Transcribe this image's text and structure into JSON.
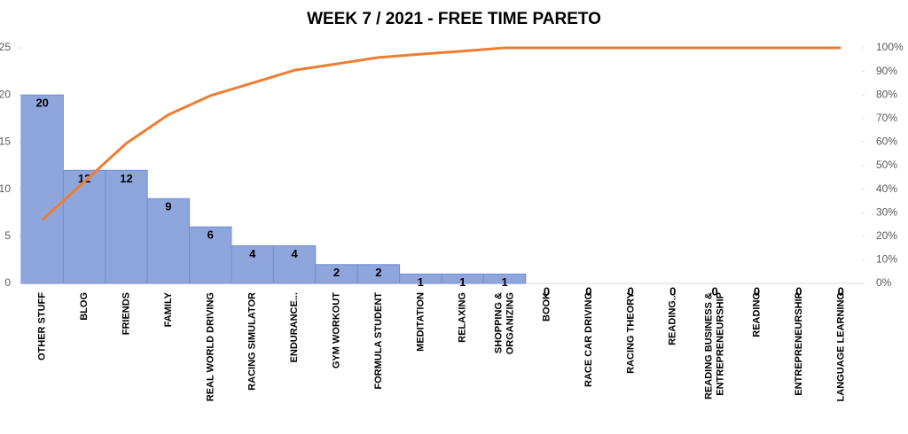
{
  "chart_data": {
    "type": "pareto",
    "title": "WEEK 7 / 2021 - FREE TIME PARETO",
    "categories": [
      "OTHER STUFF",
      "BLOG",
      "FRIENDS",
      "FAMILY",
      "REAL WORLD DRIVING",
      "RACING SIMULATOR",
      "ENDURANCE...",
      "GYM WORKOUT",
      "FORMULA STUDENT",
      "MEDITATION",
      "RELAXING",
      "SHOPPING & ORGANIZING",
      "BOOK",
      "RACE CAR DRIVING",
      "RACING THEORY",
      "READING...",
      "READING BUSINESS & ENTREPRENEURSHIP",
      "READING",
      "ENTREPRENEURSHIP",
      "LANGUAGE LEARNING"
    ],
    "series": [
      {
        "type": "bar",
        "color": "#8fa6dd",
        "values": [
          20,
          12,
          12,
          9,
          6,
          4,
          4,
          2,
          2,
          1,
          1,
          1,
          0,
          0,
          0,
          0,
          0,
          0,
          0,
          0
        ]
      },
      {
        "type": "line",
        "axis": "y2",
        "color": "#ed7d31",
        "values": [
          27.0,
          43.2,
          59.5,
          71.6,
          79.7,
          85.1,
          90.5,
          93.2,
          95.9,
          97.3,
          98.6,
          100,
          100,
          100,
          100,
          100,
          100,
          100,
          100,
          100
        ]
      }
    ],
    "ylim": [
      0,
      25
    ],
    "yticks": [
      0,
      5,
      10,
      15,
      20,
      25
    ],
    "y2lim": [
      0,
      100
    ],
    "y2ticks": [
      {
        "value": 0,
        "label": "0%"
      },
      {
        "value": 10,
        "label": "10%"
      },
      {
        "value": 20,
        "label": "20%"
      },
      {
        "value": 30,
        "label": "30%"
      },
      {
        "value": 40,
        "label": "40%"
      },
      {
        "value": 50,
        "label": "50%"
      },
      {
        "value": 60,
        "label": "60%"
      },
      {
        "value": 70,
        "label": "70%"
      },
      {
        "value": 80,
        "label": "80%"
      },
      {
        "value": 90,
        "label": "90%"
      },
      {
        "value": 100,
        "label": "100%"
      }
    ]
  }
}
